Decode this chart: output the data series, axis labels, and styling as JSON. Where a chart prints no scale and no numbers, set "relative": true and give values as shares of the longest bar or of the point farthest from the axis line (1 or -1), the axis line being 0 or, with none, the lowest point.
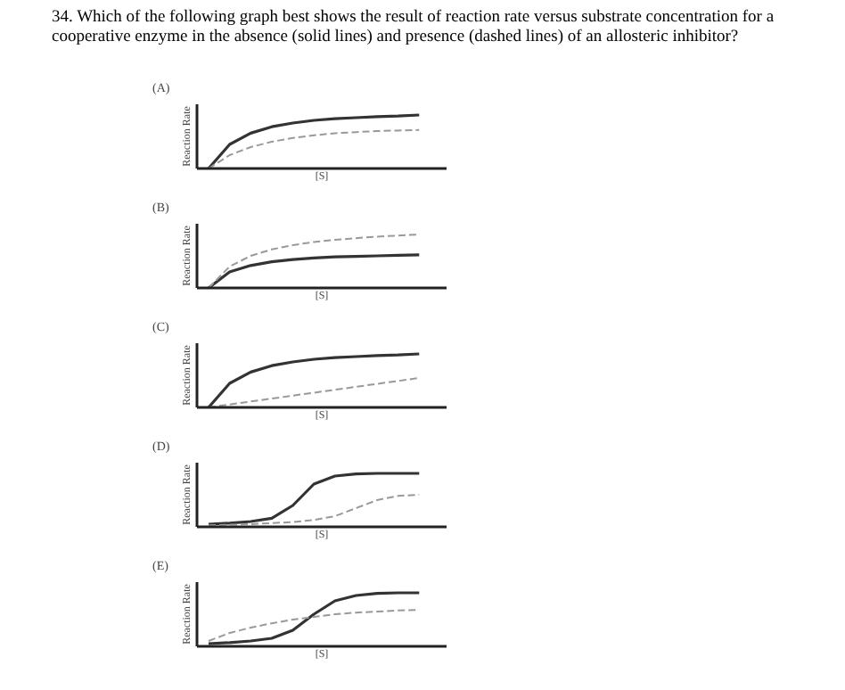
{
  "chart_data": [
    {
      "type": "line",
      "title": "(A)",
      "xlabel": "[S]",
      "ylabel": "Reaction Rate",
      "relative": true,
      "annotations": [
        "34. Which of the following graph best shows the result of reaction rate versus substrate concentration for a cooperative enzyme in the absence (solid lines) and presence (dashed lines) of an allosteric inhibitor?"
      ],
      "categories": [
        null,
        null,
        null,
        null,
        null,
        null,
        null,
        null,
        null,
        null,
        null
      ],
      "series": [
        {
          "color": "#333333",
          "line_style": "solid",
          "values": [
            0,
            0.45,
            0.66,
            0.78,
            0.85,
            0.9,
            0.93,
            0.95,
            0.97,
            0.98,
            1.0
          ]
        },
        {
          "color": "#999999",
          "line_style": "dashed",
          "values": [
            0,
            0.25,
            0.4,
            0.5,
            0.57,
            0.62,
            0.66,
            0.68,
            0.7,
            0.71,
            0.72
          ]
        }
      ]
    },
    {
      "type": "line",
      "title": "(B)",
      "xlabel": "[S]",
      "ylabel": "Reaction Rate",
      "relative": true,
      "categories": [
        null,
        null,
        null,
        null,
        null,
        null,
        null,
        null,
        null,
        null,
        null
      ],
      "series": [
        {
          "color": "#333333",
          "line_style": "solid",
          "values": [
            0,
            0.3,
            0.42,
            0.49,
            0.53,
            0.56,
            0.58,
            0.59,
            0.6,
            0.61,
            0.62
          ]
        },
        {
          "color": "#999999",
          "line_style": "dashed",
          "values": [
            0,
            0.4,
            0.6,
            0.72,
            0.8,
            0.86,
            0.9,
            0.93,
            0.96,
            0.98,
            1.0
          ]
        }
      ]
    },
    {
      "type": "line",
      "title": "(C)",
      "xlabel": "[S]",
      "ylabel": "Reaction Rate",
      "relative": true,
      "categories": [
        null,
        null,
        null,
        null,
        null,
        null,
        null,
        null,
        null,
        null,
        null
      ],
      "series": [
        {
          "color": "#333333",
          "line_style": "solid",
          "values": [
            0,
            0.45,
            0.66,
            0.78,
            0.85,
            0.9,
            0.93,
            0.95,
            0.97,
            0.98,
            1.0
          ]
        },
        {
          "color": "#999999",
          "line_style": "dashed",
          "values": [
            0,
            0.055,
            0.11,
            0.165,
            0.22,
            0.275,
            0.33,
            0.385,
            0.44,
            0.495,
            0.55
          ]
        }
      ]
    },
    {
      "type": "line",
      "title": "(D)",
      "xlabel": "[S]",
      "ylabel": "Reaction Rate",
      "relative": true,
      "categories": [
        null,
        null,
        null,
        null,
        null,
        null,
        null,
        null,
        null,
        null,
        null
      ],
      "series": [
        {
          "color": "#333333",
          "line_style": "solid",
          "values": [
            0.05,
            0.07,
            0.1,
            0.16,
            0.4,
            0.8,
            0.95,
            0.99,
            1.0,
            1.0,
            1.0
          ]
        },
        {
          "color": "#999999",
          "line_style": "dashed",
          "values": [
            0.03,
            0.04,
            0.05,
            0.07,
            0.09,
            0.13,
            0.2,
            0.35,
            0.5,
            0.58,
            0.6
          ]
        }
      ]
    },
    {
      "type": "line",
      "title": "(E)",
      "xlabel": "[S]",
      "ylabel": "Reaction Rate",
      "relative": true,
      "categories": [
        null,
        null,
        null,
        null,
        null,
        null,
        null,
        null,
        null,
        null,
        null
      ],
      "series": [
        {
          "color": "#333333",
          "line_style": "solid",
          "values": [
            0.05,
            0.07,
            0.1,
            0.15,
            0.3,
            0.6,
            0.85,
            0.95,
            0.99,
            1.0,
            1.0
          ]
        },
        {
          "color": "#999999",
          "line_style": "dashed",
          "values": [
            0.1,
            0.25,
            0.35,
            0.43,
            0.5,
            0.55,
            0.6,
            0.63,
            0.65,
            0.67,
            0.68
          ]
        }
      ]
    }
  ]
}
